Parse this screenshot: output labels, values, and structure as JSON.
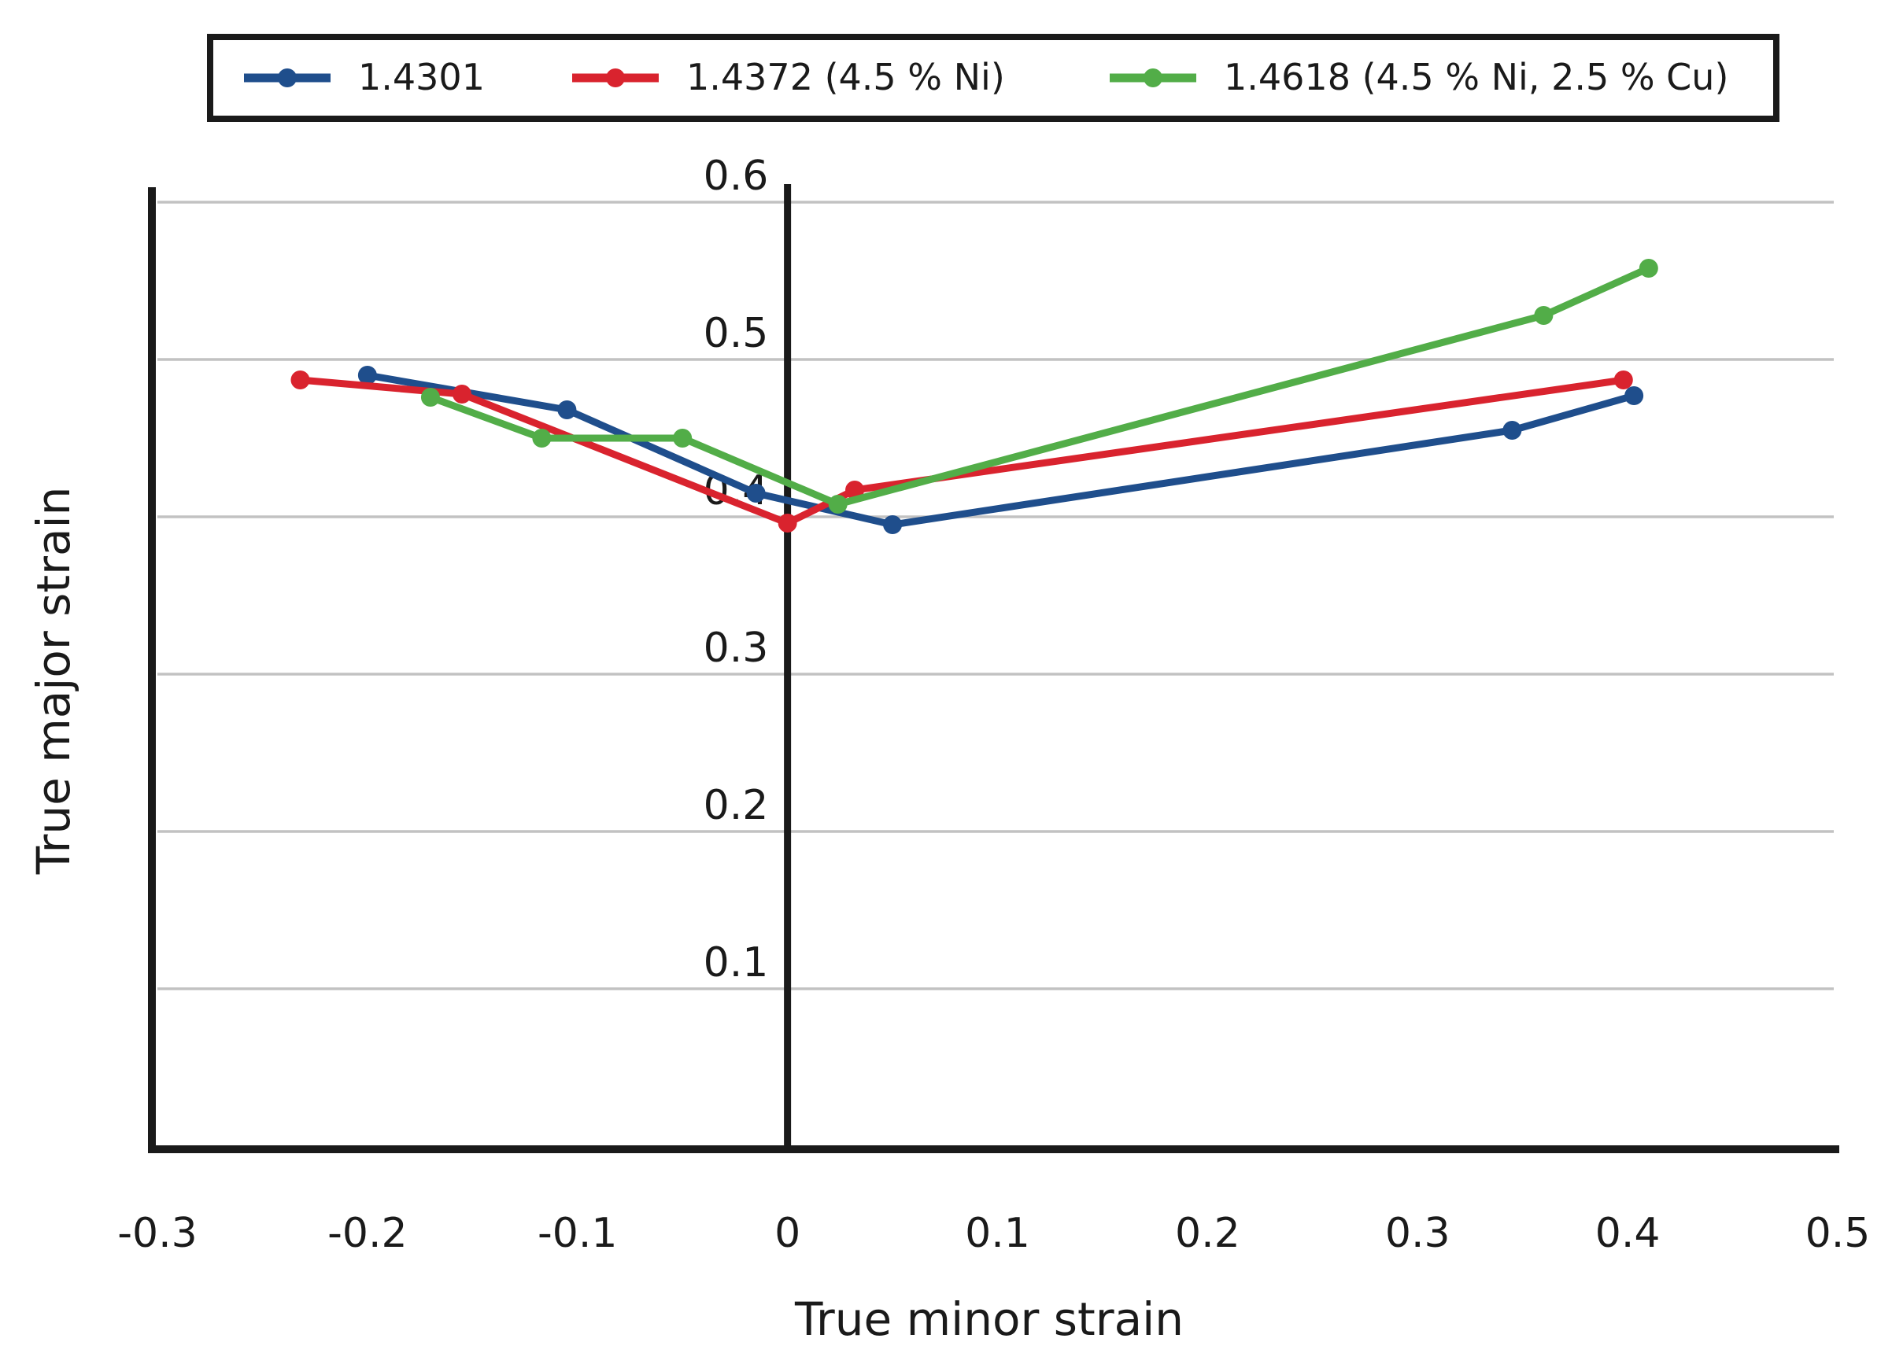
{
  "chart_data": {
    "type": "line",
    "title": "",
    "xlabel": "True minor strain",
    "ylabel": "True major strain",
    "xlim": [
      -0.3,
      0.5
    ],
    "ylim": [
      0,
      0.6
    ],
    "x_ticks": [
      "-0.3",
      "-0.2",
      "-0.1",
      "0",
      "0.1",
      "0.2",
      "0.3",
      "0.4",
      "0.5"
    ],
    "y_ticks": [
      "0.1",
      "0.2",
      "0.3",
      "0.4",
      "0.5",
      "0.6"
    ],
    "grid": true,
    "legend_position": "top",
    "series": [
      {
        "name": "1.4301",
        "color": "#1f4e8c",
        "x": [
          -0.2,
          -0.105,
          -0.015,
          0.05,
          0.345,
          0.403
        ],
        "y": [
          0.49,
          0.468,
          0.415,
          0.395,
          0.455,
          0.477
        ]
      },
      {
        "name": "1.4372 (4.5 % Ni)",
        "color": "#d9232e",
        "x": [
          -0.232,
          -0.155,
          0.0,
          0.032,
          0.398
        ],
        "y": [
          0.487,
          0.478,
          0.396,
          0.417,
          0.487
        ]
      },
      {
        "name": "1.4618 (4.5 % Ni, 2.5 % Cu)",
        "color": "#52ad48",
        "x": [
          -0.17,
          -0.117,
          -0.05,
          0.024,
          0.36,
          0.41
        ],
        "y": [
          0.476,
          0.45,
          0.45,
          0.408,
          0.528,
          0.558
        ]
      }
    ]
  }
}
